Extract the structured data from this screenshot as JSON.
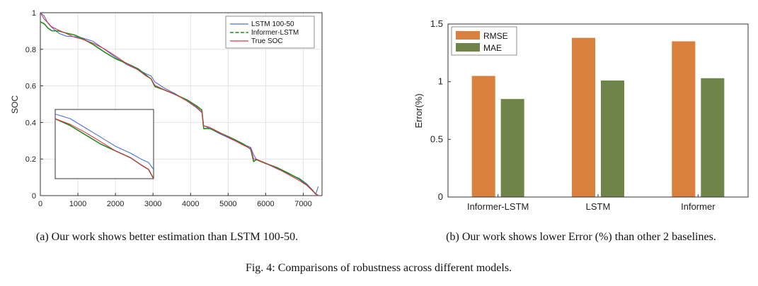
{
  "figure_caption": "Fig. 4: Comparisons of robustness across different models.",
  "subcaptions": [
    "(a) Our work shows better estimation than LSTM 100-50.",
    "(b) Our work shows lower Error (%) than other 2 baselines."
  ],
  "colors": {
    "lstm": "#4a6fd8",
    "informer_lstm": "#1f8a1f",
    "true_soc": "#e0304a",
    "rmse": "#d9803f",
    "mae": "#6f8449"
  },
  "chart_data": [
    {
      "type": "line",
      "ylabel": "SOC",
      "xlabel": "",
      "xlim": [
        0,
        7500
      ],
      "ylim": [
        0,
        1
      ],
      "x_ticks": [
        "0",
        "1000",
        "2000",
        "3000",
        "4000",
        "5000",
        "6000",
        "7000"
      ],
      "y_ticks": [
        "0",
        "0.2",
        "0.4",
        "0.6",
        "0.8",
        "1"
      ],
      "grid": true,
      "legend_position": "top-right",
      "inset": true,
      "series": [
        {
          "name": "LSTM 100-50",
          "x": [
            0,
            100,
            200,
            300,
            500,
            700,
            900,
            1100,
            1400,
            1700,
            2000,
            2300,
            2600,
            2800,
            2950,
            3050,
            3300,
            3600,
            3900,
            4150,
            4300,
            4350,
            4500,
            4800,
            5100,
            5400,
            5600,
            5680,
            5750,
            6000,
            6300,
            6600,
            6900,
            7100,
            7250,
            7330,
            7400
          ],
          "y": [
            1.0,
            0.98,
            0.94,
            0.92,
            0.89,
            0.875,
            0.87,
            0.86,
            0.84,
            0.8,
            0.76,
            0.72,
            0.69,
            0.665,
            0.65,
            0.62,
            0.59,
            0.56,
            0.52,
            0.48,
            0.45,
            0.38,
            0.37,
            0.34,
            0.31,
            0.28,
            0.26,
            0.22,
            0.2,
            0.18,
            0.15,
            0.12,
            0.09,
            0.06,
            0.03,
            0.01,
            0.05
          ]
        },
        {
          "name": "Informer-LSTM",
          "x": [
            0,
            100,
            200,
            300,
            500,
            700,
            900,
            1100,
            1400,
            1700,
            2000,
            2300,
            2600,
            2800,
            2950,
            3050,
            3300,
            3600,
            3900,
            4150,
            4300,
            4350,
            4500,
            4800,
            5100,
            5400,
            5600,
            5680,
            5750,
            6000,
            6300,
            6600,
            6900,
            7100,
            7250,
            7330,
            7400
          ],
          "y": [
            0.95,
            0.94,
            0.92,
            0.905,
            0.9,
            0.885,
            0.875,
            0.86,
            0.83,
            0.79,
            0.75,
            0.72,
            0.69,
            0.66,
            0.64,
            0.6,
            0.58,
            0.55,
            0.52,
            0.49,
            0.47,
            0.37,
            0.37,
            0.34,
            0.31,
            0.28,
            0.255,
            0.19,
            0.2,
            0.175,
            0.15,
            0.12,
            0.09,
            0.06,
            0.03,
            0.01,
            0.0
          ]
        },
        {
          "name": "True SOC",
          "x": [
            0,
            100,
            200,
            300,
            500,
            700,
            900,
            1100,
            1400,
            1700,
            2000,
            2300,
            2600,
            2800,
            2950,
            3050,
            3300,
            3600,
            3900,
            4150,
            4300,
            4350,
            4500,
            4800,
            5100,
            5400,
            5600,
            5680,
            5750,
            6000,
            6300,
            6600,
            6900,
            7100,
            7250,
            7330,
            7400
          ],
          "y": [
            1.0,
            0.97,
            0.945,
            0.92,
            0.9,
            0.885,
            0.87,
            0.86,
            0.835,
            0.8,
            0.76,
            0.72,
            0.69,
            0.66,
            0.64,
            0.6,
            0.575,
            0.55,
            0.52,
            0.49,
            0.46,
            0.38,
            0.37,
            0.34,
            0.31,
            0.28,
            0.26,
            0.2,
            0.195,
            0.175,
            0.15,
            0.12,
            0.085,
            0.055,
            0.025,
            0.005,
            0.0
          ]
        }
      ]
    },
    {
      "type": "bar",
      "ylabel": "Error(%)",
      "xlabel": "",
      "categories": [
        "Informer-LSTM",
        "LSTM",
        "Informer"
      ],
      "ylim": [
        0,
        1.5
      ],
      "y_ticks": [
        "0",
        "0.5",
        "1",
        "1.5"
      ],
      "grid": false,
      "legend_position": "top-left",
      "series": [
        {
          "name": "RMSE",
          "values": [
            1.05,
            1.38,
            1.35
          ]
        },
        {
          "name": "MAE",
          "values": [
            0.85,
            1.01,
            1.03
          ]
        }
      ]
    }
  ]
}
